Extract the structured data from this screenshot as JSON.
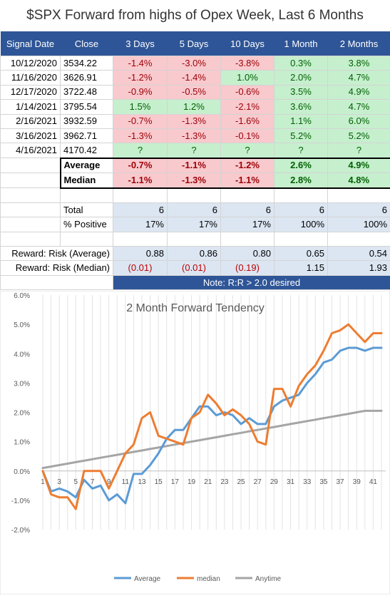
{
  "title": "$SPX Forward from highs of Opex Week, Last 6 Months",
  "columns": [
    "Signal Date",
    "Close",
    "3 Days",
    "5 Days",
    "10 Days",
    "1 Month",
    "2 Months"
  ],
  "rows": [
    {
      "date": "10/12/2020",
      "close": "3534.22",
      "cells": [
        "-1.4%",
        "-3.0%",
        "-3.8%",
        "0.3%",
        "3.8%"
      ]
    },
    {
      "date": "11/16/2020",
      "close": "3626.91",
      "cells": [
        "-1.2%",
        "-1.4%",
        "1.0%",
        "2.0%",
        "4.7%"
      ]
    },
    {
      "date": "12/17/2020",
      "close": "3722.48",
      "cells": [
        "-0.9%",
        "-0.5%",
        "-0.6%",
        "3.5%",
        "4.9%"
      ]
    },
    {
      "date": "1/14/2021",
      "close": "3795.54",
      "cells": [
        "1.5%",
        "1.2%",
        "-2.1%",
        "3.6%",
        "4.7%"
      ]
    },
    {
      "date": "2/16/2021",
      "close": "3932.59",
      "cells": [
        "-0.7%",
        "-1.3%",
        "-1.6%",
        "1.1%",
        "6.0%"
      ]
    },
    {
      "date": "3/16/2021",
      "close": "3962.71",
      "cells": [
        "-1.3%",
        "-1.3%",
        "-0.1%",
        "5.2%",
        "5.2%"
      ]
    },
    {
      "date": "4/16/2021",
      "close": "4170.42",
      "cells": [
        "?",
        "?",
        "?",
        "?",
        "?"
      ]
    }
  ],
  "stats": [
    {
      "label": "Average",
      "cells": [
        "-0.7%",
        "-1.1%",
        "-1.2%",
        "2.6%",
        "4.9%"
      ]
    },
    {
      "label": "Median",
      "cells": [
        "-1.1%",
        "-1.3%",
        "-1.1%",
        "2.8%",
        "4.8%"
      ]
    }
  ],
  "total": {
    "label": "Total",
    "cells": [
      "6",
      "6",
      "6",
      "6",
      "6"
    ]
  },
  "pct_positive": {
    "label": "% Positive",
    "cells": [
      "17%",
      "17%",
      "17%",
      "100%",
      "100%"
    ]
  },
  "rr_avg": {
    "label": "Reward: Risk (Average)",
    "cells": [
      "0.88",
      "0.86",
      "0.80",
      "0.65",
      "0.54"
    ]
  },
  "rr_median": {
    "label": "Reward: Risk (Median)",
    "cells": [
      "(0.01)",
      "(0.01)",
      "(0.19)",
      "1.15",
      "1.93"
    ]
  },
  "note": "Note: R:R > 2.0 desired",
  "colors": {
    "header": "#2e5597",
    "neg_fill": "#f8c9cd",
    "neg_text": "#9c0006",
    "pos_fill": "#c6efce",
    "pos_text": "#006100",
    "light_blue": "#dce6f2"
  },
  "chart_data": {
    "type": "line",
    "title": "2 Month Forward Tendency",
    "x": [
      1,
      2,
      3,
      4,
      5,
      6,
      7,
      8,
      9,
      10,
      11,
      12,
      13,
      14,
      15,
      16,
      17,
      18,
      19,
      20,
      21,
      22,
      23,
      24,
      25,
      26,
      27,
      28,
      29,
      30,
      31,
      32,
      33,
      34,
      35,
      36,
      37,
      38,
      39,
      40,
      41,
      42
    ],
    "x_tick_labels": [
      "1",
      "3",
      "5",
      "7",
      "9",
      "11",
      "13",
      "15",
      "17",
      "19",
      "21",
      "23",
      "25",
      "27",
      "29",
      "31",
      "33",
      "35",
      "37",
      "39",
      "41"
    ],
    "ylim": [
      -2.0,
      6.0
    ],
    "y_tick_labels": [
      "-2.0%",
      "-1.0%",
      "0.0%",
      "1.0%",
      "2.0%",
      "3.0%",
      "4.0%",
      "5.0%",
      "6.0%"
    ],
    "grid": "vertical",
    "legend_position": "bottom",
    "series": [
      {
        "name": "Average",
        "color": "#5b9bd5",
        "values": [
          0.0,
          -0.7,
          -0.6,
          -0.7,
          -0.9,
          -0.3,
          -0.6,
          -0.5,
          -1.0,
          -0.8,
          -1.1,
          -0.1,
          -0.1,
          0.2,
          0.6,
          1.1,
          1.4,
          1.4,
          1.8,
          2.2,
          2.2,
          1.9,
          2.0,
          1.9,
          1.6,
          1.8,
          1.6,
          1.6,
          2.2,
          2.4,
          2.5,
          2.6,
          3.0,
          3.3,
          3.7,
          3.8,
          4.1,
          4.2,
          4.2,
          4.1,
          4.2,
          4.2
        ]
      },
      {
        "name": "median",
        "color": "#ed7d31",
        "values": [
          0.0,
          -0.8,
          -0.9,
          -0.9,
          -1.3,
          0.0,
          0.0,
          0.0,
          -0.6,
          0.0,
          0.6,
          0.9,
          1.8,
          2.0,
          1.2,
          1.1,
          1.0,
          0.9,
          1.8,
          2.0,
          2.6,
          2.3,
          1.9,
          2.1,
          1.9,
          1.6,
          1.0,
          0.9,
          2.8,
          2.8,
          2.2,
          2.9,
          3.3,
          3.6,
          4.1,
          4.7,
          4.8,
          5.0,
          4.7,
          4.4,
          4.7,
          4.7
        ]
      },
      {
        "name": "Anytime",
        "color": "#a5a5a5",
        "values": [
          0.1,
          0.15,
          0.2,
          0.25,
          0.3,
          0.35,
          0.4,
          0.45,
          0.5,
          0.55,
          0.6,
          0.65,
          0.7,
          0.75,
          0.8,
          0.85,
          0.9,
          0.95,
          1.0,
          1.05,
          1.1,
          1.15,
          1.2,
          1.25,
          1.3,
          1.35,
          1.4,
          1.45,
          1.5,
          1.55,
          1.6,
          1.65,
          1.7,
          1.75,
          1.8,
          1.85,
          1.9,
          1.95,
          2.0,
          2.05,
          2.05,
          2.05
        ]
      }
    ]
  }
}
